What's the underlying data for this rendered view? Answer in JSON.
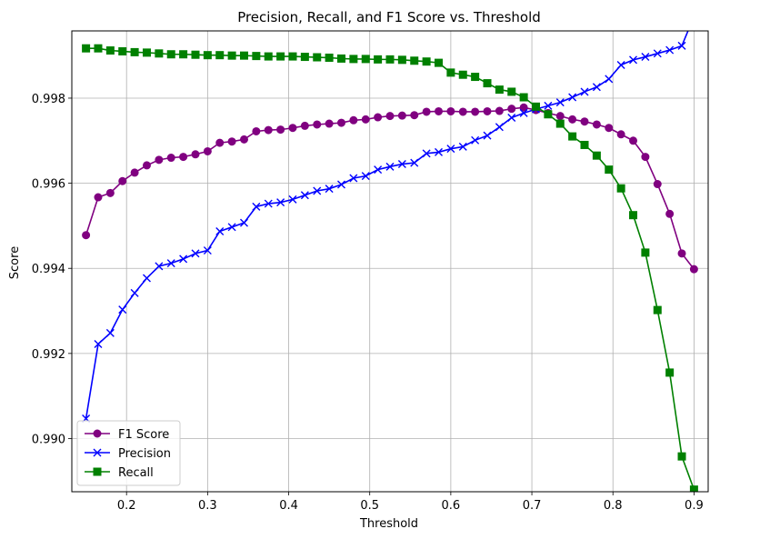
{
  "chart_data": {
    "type": "line",
    "title": "Precision, Recall, and F1 Score vs. Threshold",
    "xlabel": "Threshold",
    "ylabel": "Score",
    "xlim": [
      0.1325,
      0.9175
    ],
    "ylim": [
      0.98875,
      0.99958
    ],
    "xticks": [
      0.2,
      0.3,
      0.4,
      0.5,
      0.6,
      0.7,
      0.8,
      0.9
    ],
    "xtick_labels": [
      "0.2",
      "0.3",
      "0.4",
      "0.5",
      "0.6",
      "0.7",
      "0.8",
      "0.9"
    ],
    "yticks": [
      0.99,
      0.992,
      0.994,
      0.996,
      0.998
    ],
    "ytick_labels": [
      "0.990",
      "0.992",
      "0.994",
      "0.996",
      "0.998"
    ],
    "grid": true,
    "legend_position": "lower-left",
    "x": [
      0.15,
      0.165,
      0.18,
      0.195,
      0.21,
      0.225,
      0.24,
      0.255,
      0.27,
      0.285,
      0.3,
      0.315,
      0.33,
      0.345,
      0.36,
      0.375,
      0.39,
      0.405,
      0.42,
      0.435,
      0.45,
      0.465,
      0.48,
      0.495,
      0.51,
      0.525,
      0.54,
      0.555,
      0.57,
      0.585,
      0.6,
      0.615,
      0.63,
      0.645,
      0.66,
      0.675,
      0.69,
      0.705,
      0.72,
      0.735,
      0.75,
      0.765,
      0.78,
      0.795,
      0.81,
      0.825,
      0.84,
      0.855,
      0.87,
      0.885,
      0.9
    ],
    "series": [
      {
        "name": "F1 Score",
        "color": "#800080",
        "marker": "circle",
        "values": [
          0.99478,
          0.99567,
          0.99577,
          0.99605,
          0.99625,
          0.99642,
          0.99655,
          0.9966,
          0.99662,
          0.99668,
          0.99675,
          0.99695,
          0.99698,
          0.99703,
          0.99722,
          0.99725,
          0.99726,
          0.9973,
          0.99735,
          0.99738,
          0.9974,
          0.99742,
          0.99748,
          0.9975,
          0.99755,
          0.99758,
          0.99759,
          0.9976,
          0.99768,
          0.99769,
          0.99769,
          0.99768,
          0.99768,
          0.99769,
          0.9977,
          0.99775,
          0.99778,
          0.99772,
          0.99765,
          0.99758,
          0.9975,
          0.99745,
          0.99738,
          0.9973,
          0.99715,
          0.997,
          0.99662,
          0.99598,
          0.99528,
          0.99435,
          0.99398
        ]
      },
      {
        "name": "Precision",
        "color": "#0000ff",
        "marker": "x",
        "values": [
          0.99047,
          0.99222,
          0.99248,
          0.99303,
          0.99342,
          0.99377,
          0.99405,
          0.99412,
          0.99422,
          0.99435,
          0.99442,
          0.99487,
          0.99497,
          0.99507,
          0.99545,
          0.99552,
          0.99555,
          0.99562,
          0.99572,
          0.99582,
          0.99587,
          0.99597,
          0.99612,
          0.99617,
          0.99632,
          0.99639,
          0.99645,
          0.99648,
          0.9967,
          0.99673,
          0.99681,
          0.99686,
          0.99701,
          0.99712,
          0.99732,
          0.99754,
          0.99765,
          0.99774,
          0.99782,
          0.9979,
          0.99802,
          0.99815,
          0.99826,
          0.99845,
          0.99878,
          0.9989,
          0.99897,
          0.99905,
          0.99913,
          0.99923,
          0.99992
        ]
      },
      {
        "name": "Recall",
        "color": "#008000",
        "marker": "square",
        "values": [
          0.99917,
          0.99917,
          0.99912,
          0.9991,
          0.99908,
          0.99907,
          0.99905,
          0.99903,
          0.99903,
          0.99902,
          0.99901,
          0.99901,
          0.999,
          0.999,
          0.99899,
          0.99898,
          0.99898,
          0.99898,
          0.99897,
          0.99896,
          0.99895,
          0.99893,
          0.99892,
          0.99892,
          0.99891,
          0.99891,
          0.9989,
          0.99888,
          0.99886,
          0.99883,
          0.9986,
          0.99855,
          0.9985,
          0.99835,
          0.9982,
          0.99815,
          0.99802,
          0.9978,
          0.99762,
          0.9974,
          0.9971,
          0.9969,
          0.99665,
          0.99632,
          0.99588,
          0.99525,
          0.99437,
          0.99302,
          0.99155,
          0.98958,
          0.9888
        ]
      }
    ]
  }
}
